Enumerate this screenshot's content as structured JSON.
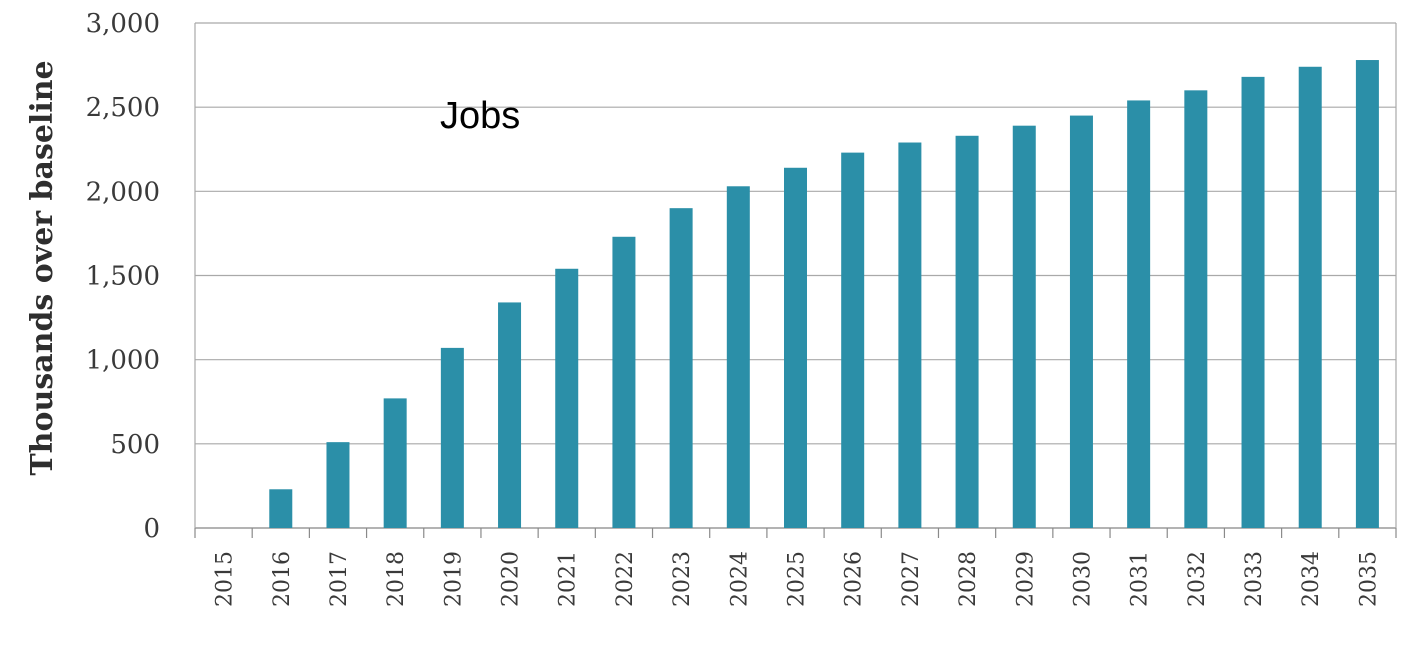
{
  "chart_data": {
    "type": "bar",
    "title": "",
    "xlabel": "",
    "ylabel": "Thousands over baseline",
    "annotation": "Jobs",
    "categories": [
      "2015",
      "2016",
      "2017",
      "2018",
      "2019",
      "2020",
      "2021",
      "2022",
      "2023",
      "2024",
      "2025",
      "2026",
      "2027",
      "2028",
      "2029",
      "2030",
      "2031",
      "2032",
      "2033",
      "2034",
      "2035"
    ],
    "series": [
      {
        "values": [
          0,
          230,
          510,
          770,
          1070,
          1340,
          1540,
          1730,
          1900,
          2030,
          2140,
          2230,
          2290,
          2330,
          2390,
          2450,
          2540,
          2600,
          2680,
          2740,
          2780
        ]
      }
    ],
    "ylim": [
      0,
      3000
    ],
    "yticks": [
      0,
      500,
      1000,
      1500,
      2000,
      2500,
      3000
    ],
    "ytick_labels": [
      "0",
      "500",
      "1,000",
      "1,500",
      "2,000",
      "2,500",
      "3,000"
    ],
    "grid": true,
    "bar_color": "#2b8fa8"
  }
}
